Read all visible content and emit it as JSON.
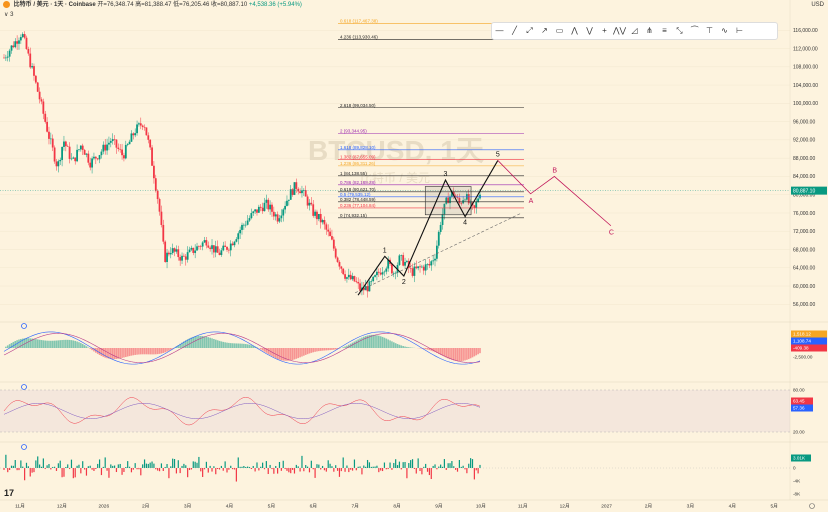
{
  "header": {
    "symbol": "比特币 / 美元 · 1天 · Coinbase",
    "open": "开=76,348.74",
    "high": "高=81,388.47",
    "low": "低=76,205.46",
    "close": "收=80,887.10",
    "change": "+4,538.36 (+5.94%)",
    "indicator_count": "3",
    "currency": "USD"
  },
  "watermark": {
    "main": "BTCUSD, 1天",
    "sub": "比特币 / 美元"
  },
  "toolbar": {
    "tools": [
      "horizontal-line-tool",
      "trend-line-tool",
      "ray-tool",
      "arrow-tool",
      "rectangle-tool",
      "xabcd-pattern-tool",
      "abcd-pattern-tool",
      "crosshair-tool",
      "elliott-wave-tool",
      "triangle-tool",
      "pitchfork-tool",
      "fib-tool",
      "measure-tool",
      "head-shoulders-tool",
      "cycle-tool",
      "wave-tool",
      "range-tool"
    ],
    "glyphs": [
      "—",
      "╱",
      "⤢",
      "↗",
      "▭",
      "⋀",
      "⋁",
      "+",
      "⋀⋁",
      "◿",
      "⋔",
      "≡",
      "⤡",
      "⏜",
      "⊤",
      "∿",
      "⊢"
    ]
  },
  "chart_data": {
    "type": "candlestick",
    "price_axis": {
      "ticks": [
        "116,000.00",
        "112,000.00",
        "108,000.00",
        "104,000.00",
        "100,000.00",
        "96,000.00",
        "92,000.00",
        "88,000.00",
        "84,000.00",
        "80,000.00",
        "76,000.00",
        "72,000.00",
        "68,000.00",
        "64,000.00",
        "60,000.00",
        "56,000.00"
      ],
      "tick_values": [
        116000,
        112000,
        108000,
        104000,
        100000,
        96000,
        92000,
        88000,
        84000,
        80000,
        76000,
        72000,
        68000,
        64000,
        60000,
        56000
      ],
      "current_price": "80,887.10",
      "current_value": 80887.1
    },
    "time_axis": {
      "labels": [
        "11月",
        "12月",
        "2026",
        "2月",
        "3月",
        "4月",
        "5月",
        "6月",
        "7月",
        "8月",
        "9月",
        "10月",
        "11月",
        "12月",
        "2027",
        "2月",
        "3月",
        "4月",
        "5月"
      ]
    },
    "price_path": [
      {
        "t": 0,
        "p": 110000
      },
      {
        "t": 0.03,
        "p": 115500
      },
      {
        "t": 0.05,
        "p": 106000
      },
      {
        "t": 0.06,
        "p": 101000
      },
      {
        "t": 0.075,
        "p": 93000
      },
      {
        "t": 0.09,
        "p": 86000
      },
      {
        "t": 0.1,
        "p": 92000
      },
      {
        "t": 0.115,
        "p": 87000
      },
      {
        "t": 0.13,
        "p": 91000
      },
      {
        "t": 0.145,
        "p": 87000
      },
      {
        "t": 0.16,
        "p": 89000
      },
      {
        "t": 0.18,
        "p": 92000
      },
      {
        "t": 0.2,
        "p": 88500
      },
      {
        "t": 0.22,
        "p": 94000
      },
      {
        "t": 0.235,
        "p": 96000
      },
      {
        "t": 0.245,
        "p": 90000
      },
      {
        "t": 0.26,
        "p": 78000
      },
      {
        "t": 0.27,
        "p": 66000
      },
      {
        "t": 0.28,
        "p": 68000
      },
      {
        "t": 0.3,
        "p": 66000
      },
      {
        "t": 0.32,
        "p": 68000
      },
      {
        "t": 0.34,
        "p": 70000
      },
      {
        "t": 0.36,
        "p": 67000
      },
      {
        "t": 0.38,
        "p": 69000
      },
      {
        "t": 0.4,
        "p": 73000
      },
      {
        "t": 0.42,
        "p": 76000
      },
      {
        "t": 0.44,
        "p": 78000
      },
      {
        "t": 0.46,
        "p": 75000
      },
      {
        "t": 0.48,
        "p": 80000
      },
      {
        "t": 0.49,
        "p": 82000
      },
      {
        "t": 0.5,
        "p": 81000
      },
      {
        "t": 0.52,
        "p": 76000
      },
      {
        "t": 0.535,
        "p": 74000
      },
      {
        "t": 0.55,
        "p": 70000
      },
      {
        "t": 0.56,
        "p": 66000
      },
      {
        "t": 0.575,
        "p": 62000
      },
      {
        "t": 0.59,
        "p": 61000
      },
      {
        "t": 0.6,
        "p": 59000
      },
      {
        "t": 0.615,
        "p": 60000
      },
      {
        "t": 0.63,
        "p": 63000
      },
      {
        "t": 0.645,
        "p": 65000
      },
      {
        "t": 0.655,
        "p": 63000
      },
      {
        "t": 0.665,
        "p": 66000
      },
      {
        "t": 0.675,
        "p": 65000
      },
      {
        "t": 0.685,
        "p": 63000
      },
      {
        "t": 0.7,
        "p": 64000
      },
      {
        "t": 0.715,
        "p": 64500
      },
      {
        "t": 0.725,
        "p": 67000
      },
      {
        "t": 0.735,
        "p": 75000
      },
      {
        "t": 0.745,
        "p": 79000
      },
      {
        "t": 0.755,
        "p": 80500
      },
      {
        "t": 0.765,
        "p": 78000
      },
      {
        "t": 0.775,
        "p": 80000
      },
      {
        "t": 0.785,
        "p": 77000
      },
      {
        "t": 0.79,
        "p": 76500
      },
      {
        "t": 0.8,
        "p": 80887
      }
    ],
    "fib_levels": [
      {
        "label": "0.618 (117,467.38)",
        "value": 117467,
        "color": "#f5a623"
      },
      {
        "label": "4.236 (113,930.46)",
        "value": 113930,
        "color": "#222222"
      },
      {
        "label": "2.618 (99,034.50)",
        "value": 99034,
        "color": "#222222"
      },
      {
        "label": "2 (93,344.95)",
        "value": 93344,
        "color": "#9c27b0"
      },
      {
        "label": "1.618 (89,828.10)",
        "value": 89828,
        "color": "#2962ff"
      },
      {
        "label": "1.382 (87,655.09)",
        "value": 87655,
        "color": "#f23645"
      },
      {
        "label": "1.236 (86,311.26)",
        "value": 86311,
        "color": "#f5a623"
      },
      {
        "label": "1 (84,138.55)",
        "value": 84138,
        "color": "#222222"
      },
      {
        "label": "0.786 (82,168.28)",
        "value": 82168,
        "color": "#9c27b0"
      },
      {
        "label": "0.618 (80,621.70)",
        "value": 80621,
        "color": "#222222"
      },
      {
        "label": "0.5 (79,535.12)",
        "value": 79535,
        "color": "#2962ff"
      },
      {
        "label": "0.382 (78,448.59)",
        "value": 78448,
        "color": "#222222"
      },
      {
        "label": "0.236 (77,104.84)",
        "value": 77104,
        "color": "#f23645"
      },
      {
        "label": "0 (74,932.15)",
        "value": 74932,
        "color": "#222222"
      }
    ],
    "elliott_impulse": [
      {
        "label": "",
        "t": 0.595,
        "p": 58000
      },
      {
        "label": "1",
        "t": 0.64,
        "p": 66500
      },
      {
        "label": "2",
        "t": 0.672,
        "p": 62200
      },
      {
        "label": "3",
        "t": 0.742,
        "p": 83200
      },
      {
        "label": "4",
        "t": 0.775,
        "p": 75200
      },
      {
        "label": "5",
        "t": 0.83,
        "p": 87500
      }
    ],
    "elliott_correction": [
      {
        "label": "",
        "t": 0.83,
        "p": 87500
      },
      {
        "label": "A",
        "t": 0.885,
        "p": 80200
      },
      {
        "label": "B",
        "t": 0.925,
        "p": 84000
      },
      {
        "label": "C",
        "t": 1.02,
        "p": 73200
      }
    ],
    "trend_line": [
      {
        "t": 0.59,
        "p": 58500
      },
      {
        "t": 0.87,
        "p": 76000
      }
    ],
    "consolidation_box": {
      "t1": 0.708,
      "t2": 0.785,
      "p1": 81800,
      "p2": 75600
    },
    "macd": {
      "labels": [
        "1,518.12",
        "1,108.74",
        "-409.38",
        "-2,500.00"
      ],
      "values": [
        1518.12,
        1108.74,
        -409.38,
        -2500
      ]
    },
    "rsi": {
      "labels": [
        "80.00",
        "63.45",
        "57.36",
        "20.00"
      ],
      "values": [
        80,
        63.45,
        57.36,
        20
      ]
    },
    "volume": {
      "labels": [
        "3.01K",
        "0",
        "-4K",
        "-8K"
      ],
      "values": [
        3010,
        0,
        -4000,
        -8000
      ]
    }
  },
  "colors": {
    "up": "#089981",
    "down": "#f23645",
    "impulse": "#111111",
    "correction": "#c2185b",
    "macd_line": "#2962ff",
    "signal_line": "#b83b8a",
    "rsi_line": "#7e57c2",
    "price_badge": "#089981",
    "background": "#fdf3de"
  }
}
